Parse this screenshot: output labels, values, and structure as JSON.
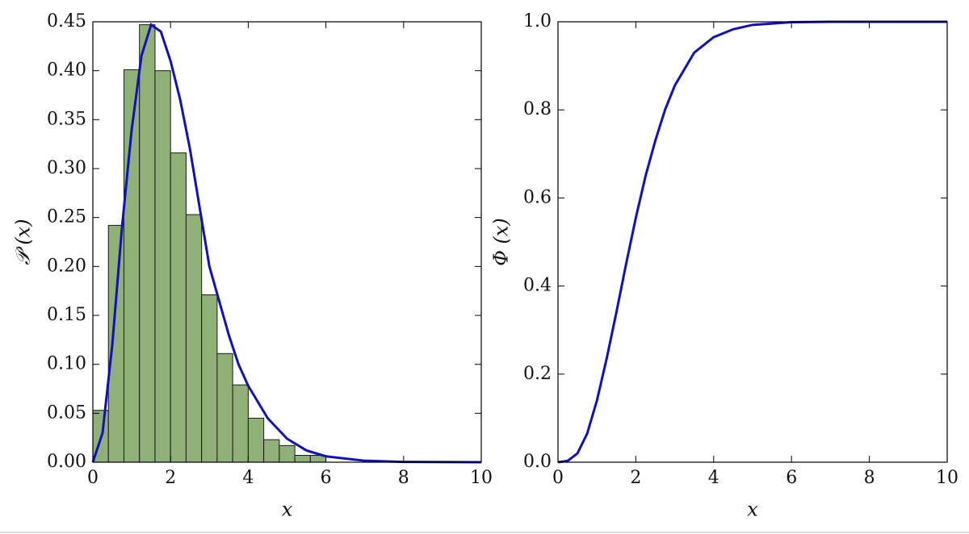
{
  "chart_data": [
    {
      "type": "histogram",
      "xlabel": "x",
      "ylabel": "𝒫 (x)",
      "bins": [
        0,
        0.4,
        0.8,
        1.2,
        1.6,
        2.0,
        2.4,
        2.8,
        3.2,
        3.6,
        4.0,
        4.4,
        4.8,
        5.2,
        5.6,
        6.0
      ],
      "values": [
        0.053,
        0.242,
        0.401,
        0.447,
        0.4,
        0.316,
        0.253,
        0.171,
        0.111,
        0.079,
        0.045,
        0.023,
        0.017,
        0.007,
        0.007
      ],
      "color": "#8fb077",
      "edgecolor": "#1a1a1a",
      "line": {
        "color": "#1010c0",
        "x": [
          0,
          0.25,
          0.5,
          0.75,
          1.0,
          1.25,
          1.5,
          1.75,
          2.0,
          2.25,
          2.5,
          2.75,
          3.0,
          3.25,
          3.5,
          3.75,
          4.0,
          4.5,
          5.0,
          5.5,
          6.0,
          7.0,
          8.0,
          10.0
        ],
        "values": [
          0,
          0.03,
          0.12,
          0.24,
          0.34,
          0.415,
          0.447,
          0.44,
          0.41,
          0.37,
          0.32,
          0.26,
          0.2,
          0.165,
          0.13,
          0.1,
          0.078,
          0.045,
          0.024,
          0.012,
          0.006,
          0.0015,
          0.0003,
          0
        ]
      },
      "xlim": [
        0,
        10
      ],
      "xticks": [
        0,
        2,
        4,
        6,
        8,
        10
      ],
      "ylim": [
        0,
        0.45
      ],
      "yticks": [
        {
          "value": 0,
          "label": "0.00"
        },
        {
          "value": 0.05,
          "label": "0.05"
        },
        {
          "value": 0.1,
          "label": "0.10"
        },
        {
          "value": 0.15,
          "label": "0.15"
        },
        {
          "value": 0.2,
          "label": "0.20"
        },
        {
          "value": 0.25,
          "label": "0.25"
        },
        {
          "value": 0.3,
          "label": "0.30"
        },
        {
          "value": 0.35,
          "label": "0.35"
        },
        {
          "value": 0.4,
          "label": "0.40"
        },
        {
          "value": 0.45,
          "label": "0.45"
        }
      ]
    },
    {
      "type": "line",
      "xlabel": "x",
      "ylabel": "Φ (x)",
      "color": "#1010c0",
      "x": [
        0,
        0.25,
        0.5,
        0.75,
        1.0,
        1.25,
        1.5,
        1.75,
        2.0,
        2.25,
        2.5,
        2.75,
        3.0,
        3.5,
        4.0,
        4.5,
        5.0,
        6.0,
        7.0,
        10.0
      ],
      "values": [
        0,
        0.003,
        0.02,
        0.065,
        0.14,
        0.235,
        0.34,
        0.45,
        0.555,
        0.65,
        0.73,
        0.8,
        0.855,
        0.93,
        0.965,
        0.983,
        0.993,
        0.999,
        1.0,
        1.0
      ],
      "xlim": [
        0,
        10
      ],
      "xticks": [
        0,
        2,
        4,
        6,
        8,
        10
      ],
      "ylim": [
        0,
        1.0
      ],
      "yticks": [
        {
          "value": 0,
          "label": "0.0"
        },
        {
          "value": 0.2,
          "label": "0.2"
        },
        {
          "value": 0.4,
          "label": "0.4"
        },
        {
          "value": 0.6,
          "label": "0.6"
        },
        {
          "value": 0.8,
          "label": "0.8"
        },
        {
          "value": 1.0,
          "label": "1.0"
        }
      ]
    }
  ]
}
